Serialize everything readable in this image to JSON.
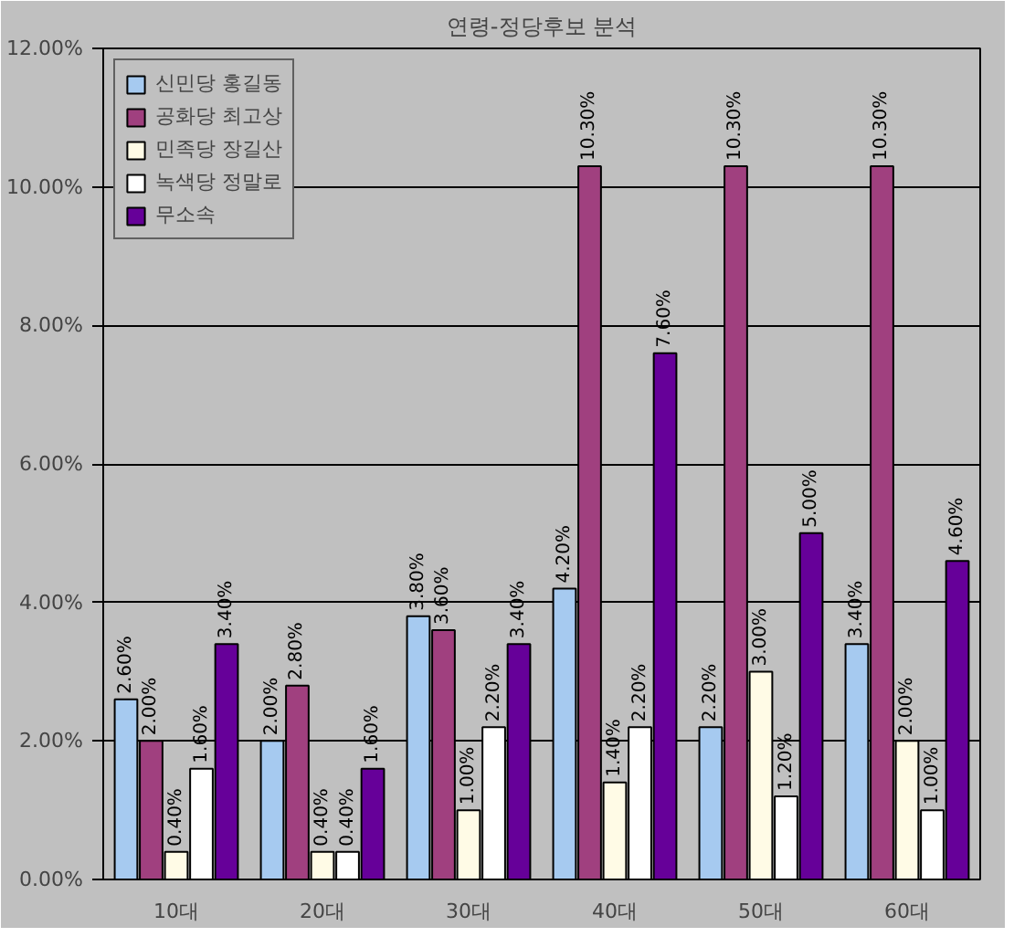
{
  "chart_data": {
    "type": "bar",
    "title": "연령-정당후보 분석",
    "categories": [
      "10대",
      "20대",
      "30대",
      "40대",
      "50대",
      "60대"
    ],
    "series": [
      {
        "name": "신민당 홍길동",
        "color": "#a6caf0",
        "values": [
          2.6,
          2.0,
          3.8,
          4.2,
          2.2,
          3.4
        ],
        "value_labels": [
          "2.60%",
          "2.00%",
          "3.80%",
          "4.20%",
          "2.20%",
          "3.40%"
        ]
      },
      {
        "name": "공화당 최고상",
        "color": "#a0407f",
        "values": [
          2.0,
          2.8,
          3.6,
          10.3,
          10.3,
          10.3
        ],
        "value_labels": [
          "2.00%",
          "2.80%",
          "3.60%",
          "10.30%",
          "10.30%",
          "10.30%"
        ]
      },
      {
        "name": "민족당 장길산",
        "color": "#fffbe6",
        "values": [
          0.4,
          0.4,
          1.0,
          1.4,
          3.0,
          2.0
        ],
        "value_labels": [
          "0.40%",
          "0.40%",
          "1.00%",
          "1.40%",
          "3.00%",
          "2.00%"
        ]
      },
      {
        "name": "녹색당 정말로",
        "color": "#ffffff",
        "values": [
          1.6,
          0.4,
          2.2,
          2.2,
          1.2,
          1.0
        ],
        "value_labels": [
          "1.60%",
          "0.40%",
          "2.20%",
          "2.20%",
          "1.20%",
          "1.00%"
        ]
      },
      {
        "name": "무소속",
        "color": "#660099",
        "values": [
          3.4,
          1.6,
          3.4,
          7.6,
          5.0,
          4.6
        ],
        "value_labels": [
          "3.40%",
          "1.60%",
          "3.40%",
          "7.60%",
          "5.00%",
          "4.60%"
        ]
      }
    ],
    "ylim": [
      0,
      12
    ],
    "yticks": [
      {
        "value": 0,
        "label": "0.00%"
      },
      {
        "value": 2,
        "label": "2.00%"
      },
      {
        "value": 4,
        "label": "4.00%"
      },
      {
        "value": 6,
        "label": "6.00%"
      },
      {
        "value": 8,
        "label": "8.00%"
      },
      {
        "value": 10,
        "label": "10.00%"
      },
      {
        "value": 12,
        "label": "12.00%"
      }
    ],
    "grid": "y",
    "legend": "top left"
  }
}
